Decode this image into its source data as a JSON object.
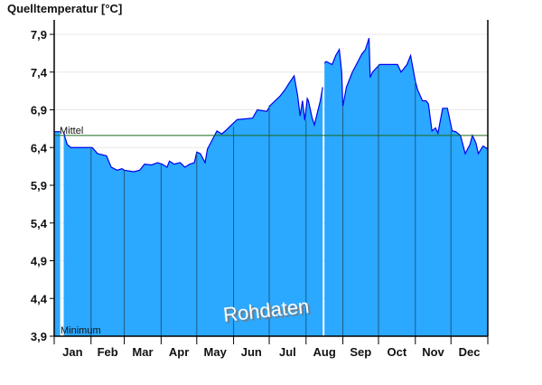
{
  "chart_data": {
    "type": "area",
    "title": "Quelltemperatur [°C]",
    "xlabel": "",
    "ylabel": "Quelltemperatur [°C]",
    "ylim": [
      3.9,
      8.0
    ],
    "yticks": [
      3.9,
      4.4,
      4.9,
      5.4,
      5.9,
      6.4,
      6.9,
      7.4,
      7.9
    ],
    "ytick_labels": [
      "3,9",
      "4,4",
      "4,9",
      "5,4",
      "5,9",
      "6,4",
      "6,9",
      "7,4",
      "7,9"
    ],
    "months": [
      "Jan",
      "Feb",
      "Mar",
      "Apr",
      "May",
      "Jun",
      "Jul",
      "Aug",
      "Sep",
      "Oct",
      "Nov",
      "Dec"
    ],
    "xlim_days": [
      0,
      365
    ],
    "grid": true,
    "mean_label": "Mittel",
    "mean_value": 6.56,
    "min_label": "Minimum",
    "watermark": "Rohdaten",
    "colors": {
      "fill": "#2ba8ff",
      "line": "#0000ee",
      "mean": "#1a6b1a",
      "month_lines": "#1d5a85",
      "grid": "#e8e8e8"
    },
    "series": [
      {
        "name": "Quelltemperatur",
        "points": [
          [
            0,
            6.61
          ],
          [
            5,
            6.61
          ],
          [
            5.5,
            null
          ],
          [
            8,
            6.61
          ],
          [
            9,
            6.54
          ],
          [
            11,
            6.44
          ],
          [
            14,
            6.4
          ],
          [
            32,
            6.4
          ],
          [
            36.5,
            6.32
          ],
          [
            44,
            6.29
          ],
          [
            48,
            6.14
          ],
          [
            53,
            6.1
          ],
          [
            57,
            6.12
          ],
          [
            59,
            6.1
          ],
          [
            67,
            6.08
          ],
          [
            72,
            6.1
          ],
          [
            76,
            6.18
          ],
          [
            82,
            6.17
          ],
          [
            87,
            6.2
          ],
          [
            91,
            6.18
          ],
          [
            95,
            6.14
          ],
          [
            97,
            6.22
          ],
          [
            101,
            6.18
          ],
          [
            106,
            6.2
          ],
          [
            110,
            6.14
          ],
          [
            114,
            6.18
          ],
          [
            118,
            6.2
          ],
          [
            120,
            6.34
          ],
          [
            123,
            6.32
          ],
          [
            127,
            6.2
          ],
          [
            129,
            6.38
          ],
          [
            133,
            6.5
          ],
          [
            137,
            6.62
          ],
          [
            141,
            6.58
          ],
          [
            144,
            6.62
          ],
          [
            148,
            6.68
          ],
          [
            154,
            6.77
          ],
          [
            167,
            6.79
          ],
          [
            171,
            6.9
          ],
          [
            179,
            6.88
          ],
          [
            182,
            6.96
          ],
          [
            190,
            7.08
          ],
          [
            194,
            7.16
          ],
          [
            198,
            7.26
          ],
          [
            202,
            7.35
          ],
          [
            205,
            7.08
          ],
          [
            207,
            6.82
          ],
          [
            209,
            7.02
          ],
          [
            211,
            6.76
          ],
          [
            213,
            7.05
          ],
          [
            214,
            7.02
          ],
          [
            217,
            6.8
          ],
          [
            219,
            6.7
          ],
          [
            224,
            7.02
          ],
          [
            226,
            7.2
          ],
          [
            226.5,
            null
          ],
          [
            227.5,
            7.52
          ],
          [
            229,
            7.54
          ],
          [
            234,
            7.5
          ],
          [
            237,
            7.62
          ],
          [
            240,
            7.7
          ],
          [
            242,
            7.4
          ],
          [
            243,
            6.95
          ],
          [
            246,
            7.2
          ],
          [
            251,
            7.4
          ],
          [
            255,
            7.52
          ],
          [
            259,
            7.64
          ],
          [
            262,
            7.7
          ],
          [
            265,
            7.85
          ],
          [
            266,
            7.33
          ],
          [
            268,
            7.4
          ],
          [
            274,
            7.5
          ],
          [
            289,
            7.5
          ],
          [
            292,
            7.4
          ],
          [
            297,
            7.5
          ],
          [
            300,
            7.62
          ],
          [
            304,
            7.28
          ],
          [
            306,
            7.16
          ],
          [
            310,
            7.02
          ],
          [
            313,
            7.02
          ],
          [
            315,
            6.98
          ],
          [
            318,
            6.62
          ],
          [
            321,
            6.66
          ],
          [
            323,
            6.59
          ],
          [
            327,
            6.92
          ],
          [
            331,
            6.92
          ],
          [
            335,
            6.62
          ],
          [
            338,
            6.61
          ],
          [
            342,
            6.56
          ],
          [
            346,
            6.32
          ],
          [
            350,
            6.44
          ],
          [
            352,
            6.56
          ],
          [
            355,
            6.46
          ],
          [
            357,
            6.32
          ],
          [
            361,
            6.42
          ],
          [
            365,
            6.38
          ]
        ]
      }
    ]
  }
}
